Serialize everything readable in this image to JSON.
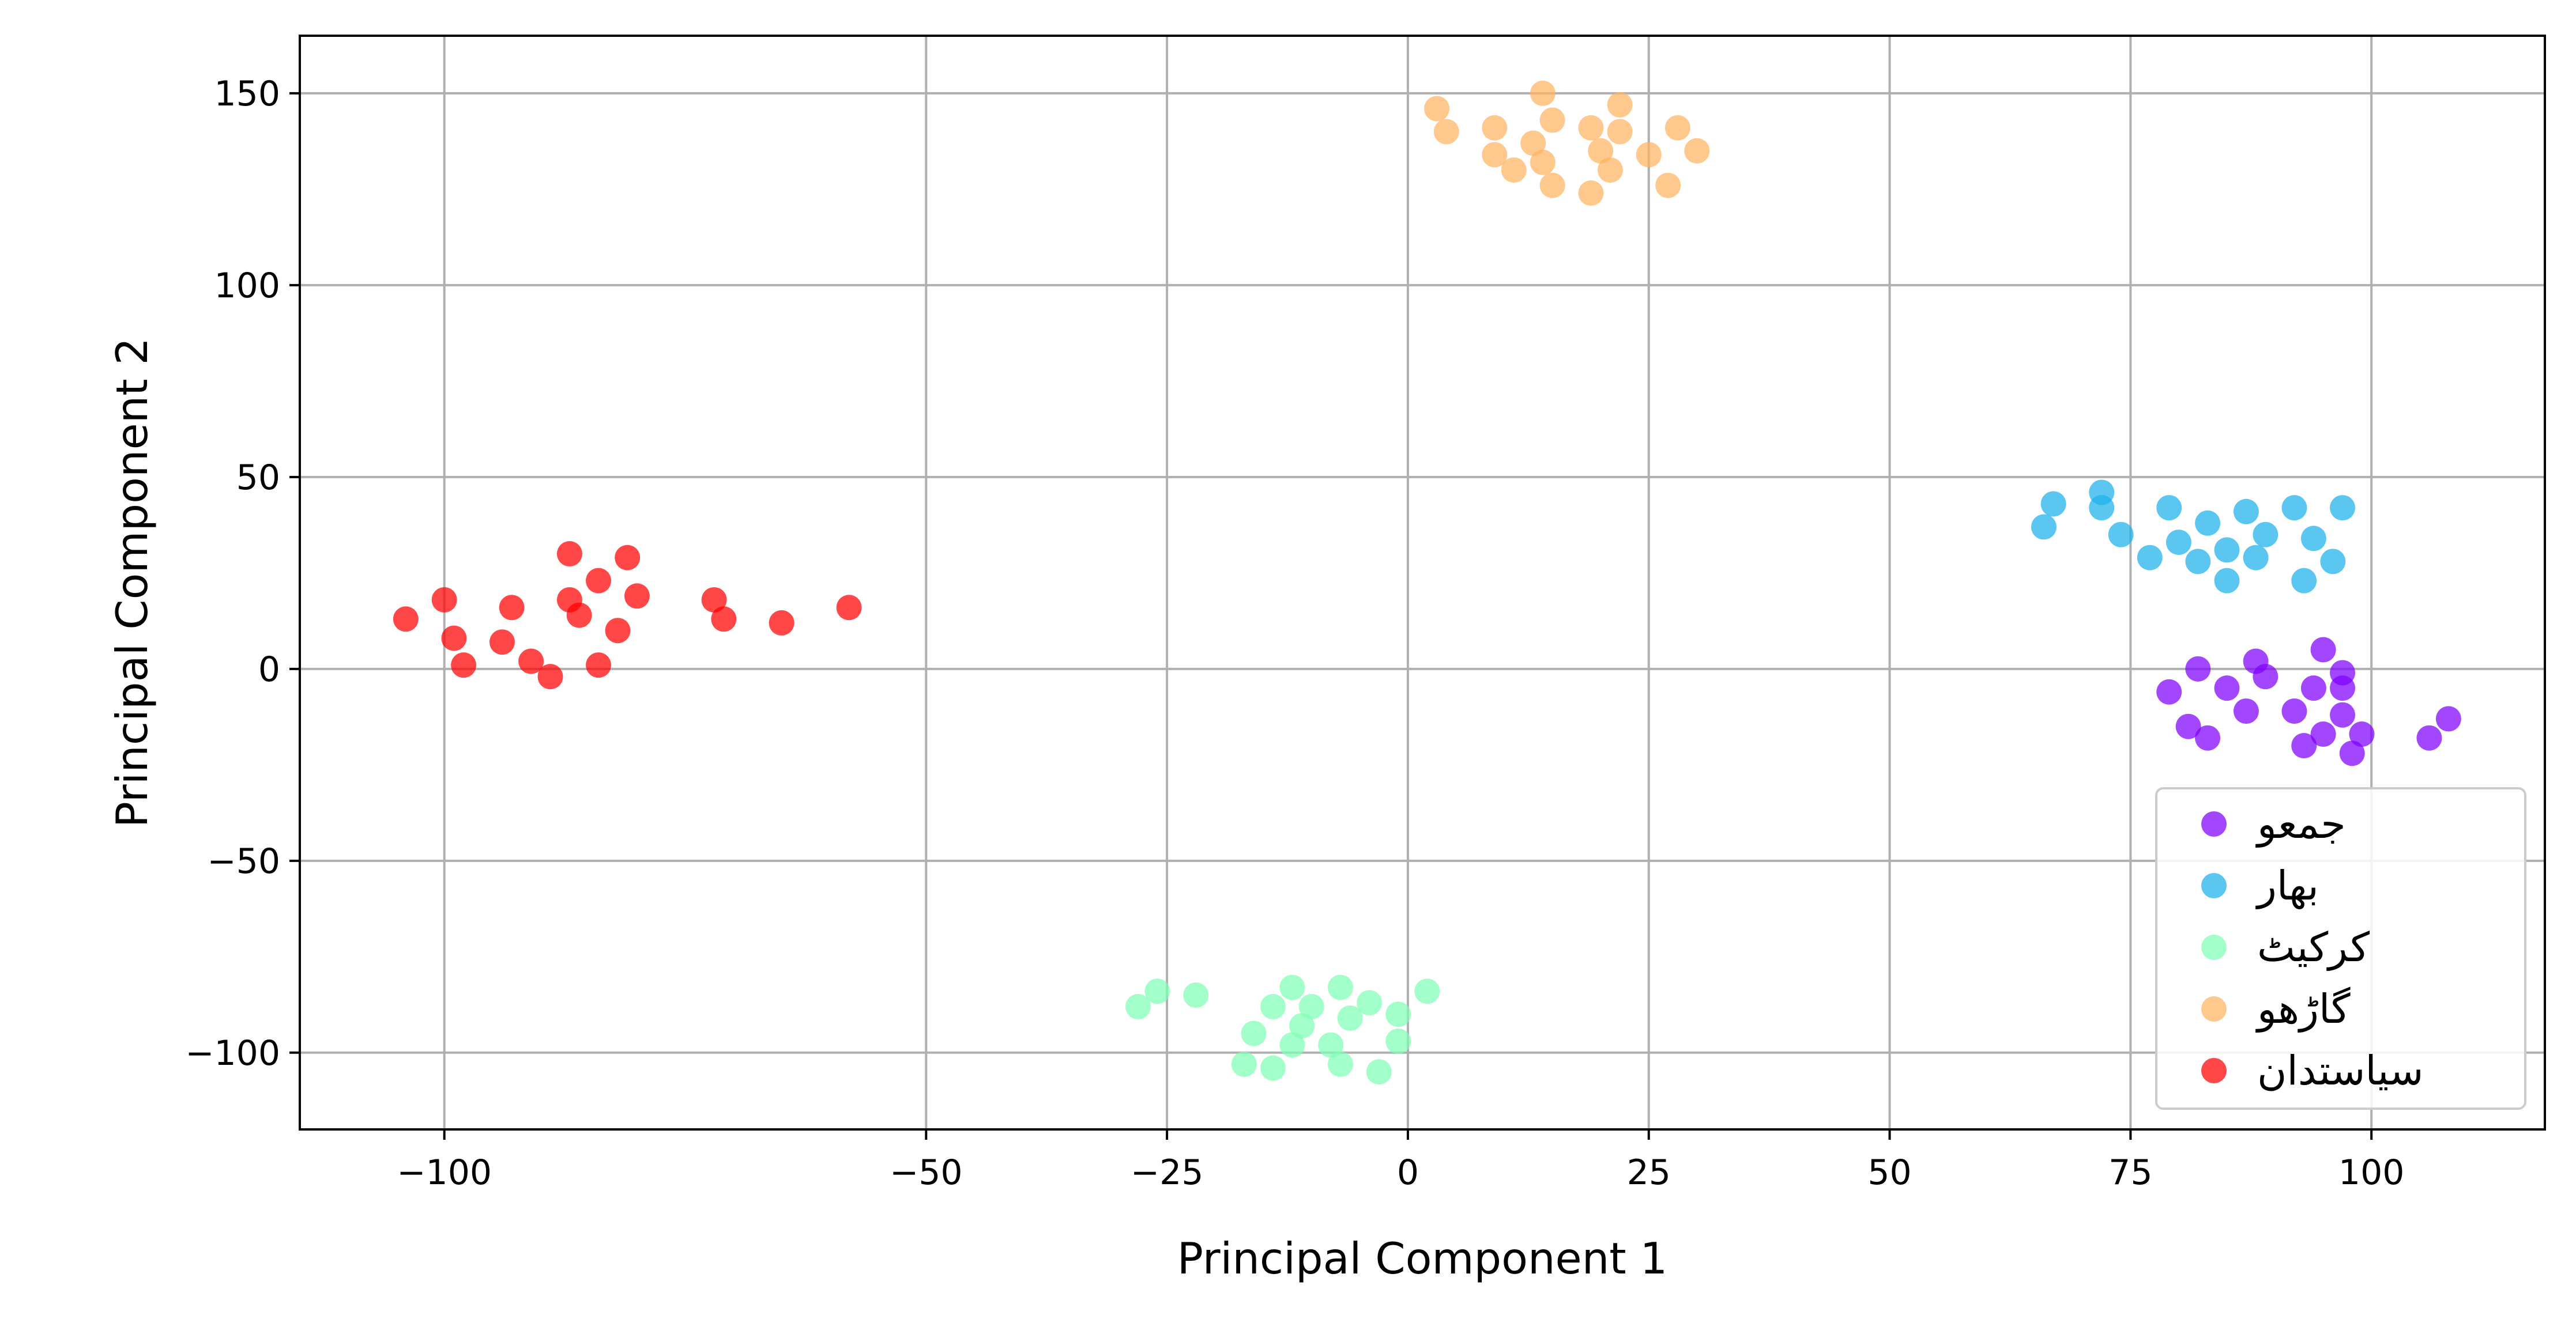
{
  "chart_data": {
    "type": "scatter",
    "title": "",
    "xlabel": "Principal Component 1",
    "ylabel": "Principal Component 2",
    "xlim": [
      -115,
      118
    ],
    "ylim": [
      -120,
      165
    ],
    "xticks": [
      -100,
      -50,
      -25,
      0,
      25,
      50,
      75,
      100
    ],
    "xtick_labels": [
      "−100",
      "−50",
      "−25",
      "0",
      "25",
      "50",
      "75",
      "100"
    ],
    "yticks": [
      150,
      100,
      50,
      0,
      -50,
      -100
    ],
    "ytick_labels": [
      "150",
      "100",
      "50",
      "0",
      "−50",
      "−100"
    ],
    "grid": true,
    "legend_position": "lower-right",
    "series": [
      {
        "name": "جمعو",
        "color": "#8000ff",
        "points": [
          [
            79,
            -6
          ],
          [
            82,
            0
          ],
          [
            85,
            -5
          ],
          [
            88,
            2
          ],
          [
            89,
            -2
          ],
          [
            92,
            -11
          ],
          [
            93,
            -20
          ],
          [
            94,
            -5
          ],
          [
            95,
            5
          ],
          [
            97,
            -1
          ],
          [
            97,
            -5
          ],
          [
            97,
            -12
          ],
          [
            98,
            -22
          ],
          [
            99,
            -17
          ],
          [
            81,
            -15
          ],
          [
            83,
            -18
          ],
          [
            87,
            -11
          ],
          [
            95,
            -17
          ],
          [
            106,
            -18
          ],
          [
            108,
            -13
          ]
        ]
      },
      {
        "name": "بهار",
        "color": "#1cb2eb",
        "points": [
          [
            66,
            37
          ],
          [
            67,
            43
          ],
          [
            72,
            46
          ],
          [
            72,
            42
          ],
          [
            74,
            35
          ],
          [
            77,
            29
          ],
          [
            79,
            42
          ],
          [
            80,
            33
          ],
          [
            82,
            28
          ],
          [
            83,
            38
          ],
          [
            85,
            31
          ],
          [
            85,
            23
          ],
          [
            87,
            41
          ],
          [
            88,
            29
          ],
          [
            89,
            35
          ],
          [
            92,
            42
          ],
          [
            93,
            23
          ],
          [
            94,
            34
          ],
          [
            96,
            28
          ],
          [
            97,
            42
          ]
        ]
      },
      {
        "name": "کرکيٹ",
        "color": "#80ffb4",
        "points": [
          [
            -28,
            -88
          ],
          [
            -26,
            -84
          ],
          [
            -22,
            -85
          ],
          [
            -17,
            -103
          ],
          [
            -16,
            -95
          ],
          [
            -14,
            -88
          ],
          [
            -14,
            -104
          ],
          [
            -12,
            -98
          ],
          [
            -12,
            -83
          ],
          [
            -11,
            -93
          ],
          [
            -10,
            -88
          ],
          [
            -8,
            -98
          ],
          [
            -7,
            -103
          ],
          [
            -7,
            -83
          ],
          [
            -6,
            -91
          ],
          [
            -4,
            -87
          ],
          [
            -3,
            -105
          ],
          [
            -1,
            -97
          ],
          [
            -1,
            -90
          ],
          [
            2,
            -84
          ]
        ]
      },
      {
        "name": "گاڑهو",
        "color": "#ffb360",
        "points": [
          [
            3,
            146
          ],
          [
            4,
            140
          ],
          [
            9,
            141
          ],
          [
            9,
            134
          ],
          [
            11,
            130
          ],
          [
            13,
            137
          ],
          [
            14,
            150
          ],
          [
            14,
            132
          ],
          [
            15,
            143
          ],
          [
            15,
            126
          ],
          [
            19,
            141
          ],
          [
            19,
            124
          ],
          [
            20,
            135
          ],
          [
            21,
            130
          ],
          [
            22,
            140
          ],
          [
            22,
            147
          ],
          [
            25,
            134
          ],
          [
            27,
            126
          ],
          [
            28,
            141
          ],
          [
            30,
            135
          ]
        ]
      },
      {
        "name": "سياستدان",
        "color": "#ff0000",
        "points": [
          [
            -104,
            13
          ],
          [
            -100,
            18
          ],
          [
            -99,
            8
          ],
          [
            -98,
            1
          ],
          [
            -94,
            7
          ],
          [
            -93,
            16
          ],
          [
            -91,
            2
          ],
          [
            -89,
            -2
          ],
          [
            -87,
            30
          ],
          [
            -87,
            18
          ],
          [
            -86,
            14
          ],
          [
            -84,
            23
          ],
          [
            -84,
            1
          ],
          [
            -82,
            10
          ],
          [
            -81,
            29
          ],
          [
            -80,
            19
          ],
          [
            -72,
            18
          ],
          [
            -71,
            13
          ],
          [
            -65,
            12
          ],
          [
            -58,
            16
          ]
        ]
      }
    ]
  }
}
